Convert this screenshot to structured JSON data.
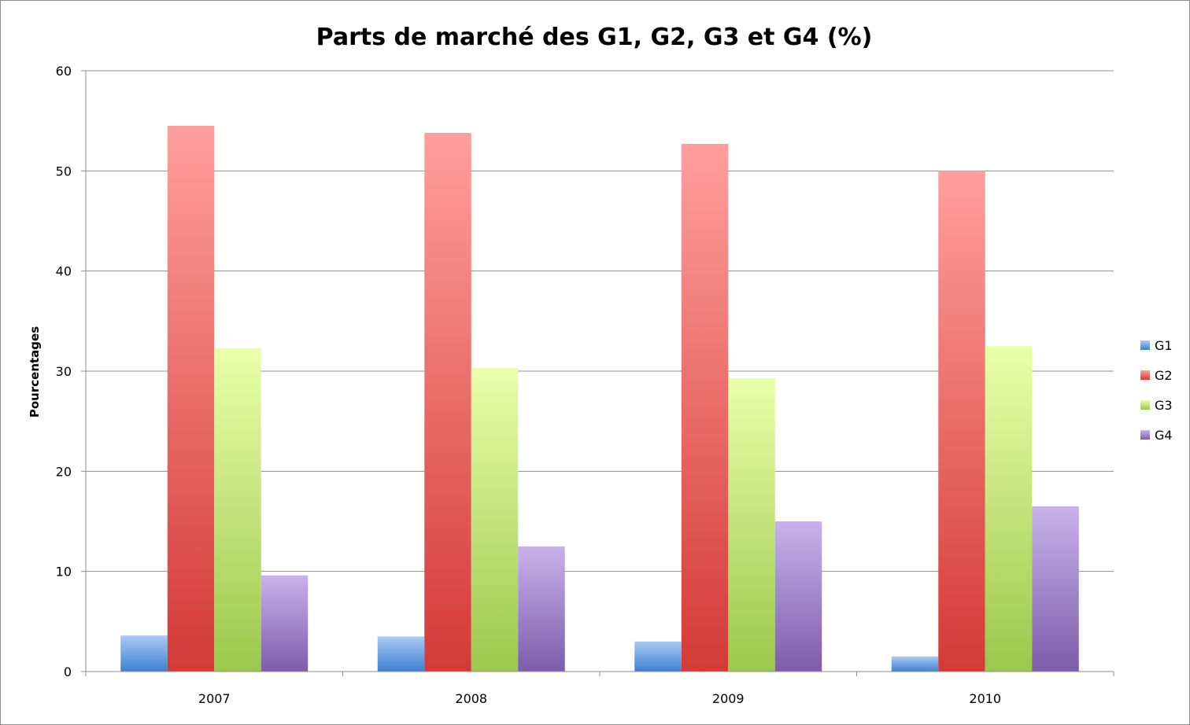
{
  "chart_data": {
    "type": "bar",
    "title": "Parts de marché des G1, G2, G3 et G4 (%)",
    "xlabel": "",
    "ylabel": "Pourcentages",
    "ylim": [
      0,
      60
    ],
    "yticks": [
      0,
      10,
      20,
      30,
      40,
      50,
      60
    ],
    "categories": [
      "2007",
      "2008",
      "2009",
      "2010"
    ],
    "series": [
      {
        "name": "G1",
        "values": [
          3.6,
          3.5,
          3.0,
          1.5
        ]
      },
      {
        "name": "G2",
        "values": [
          54.5,
          53.8,
          52.7,
          50.0
        ]
      },
      {
        "name": "G3",
        "values": [
          32.3,
          30.3,
          29.3,
          32.5
        ]
      },
      {
        "name": "G4",
        "values": [
          9.6,
          12.5,
          15.0,
          16.5
        ]
      }
    ],
    "grid": true,
    "legend_position": "right",
    "colors": {
      "G1": {
        "top": "#a9cbf5",
        "bottom": "#3f7fd0"
      },
      "G2": {
        "top": "#ff9f9c",
        "bottom": "#d33a36"
      },
      "G3": {
        "top": "#eaffaa",
        "bottom": "#9bc84c"
      },
      "G4": {
        "top": "#c8b2ec",
        "bottom": "#7d5ca9"
      }
    }
  }
}
